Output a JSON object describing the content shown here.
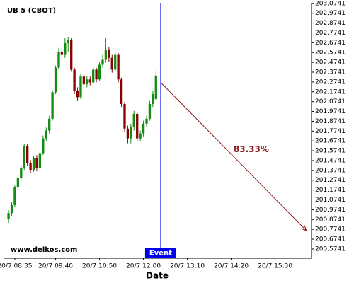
{
  "chart_data": {
    "type": "candlestick",
    "title": "UB 5 (CBOT)",
    "watermark": "www.delkos.com",
    "x_label": "Date",
    "up_color": "#148c14",
    "down_color": "#8b0000",
    "x": [
      0,
      1,
      2,
      3,
      4,
      5,
      6,
      7,
      8,
      9,
      10,
      11,
      12,
      13,
      14,
      15,
      16,
      17,
      18,
      19,
      20,
      21,
      22,
      23,
      24,
      25,
      26,
      27,
      28,
      29,
      30,
      31,
      32,
      33,
      34,
      35,
      36,
      37,
      38,
      39,
      40,
      41,
      42,
      43,
      44,
      45,
      46,
      47
    ],
    "open": [
      200.88,
      200.94,
      201.02,
      201.2,
      201.3,
      201.4,
      201.62,
      201.45,
      201.38,
      201.5,
      201.4,
      201.55,
      201.7,
      201.78,
      201.9,
      202.17,
      202.42,
      202.58,
      202.55,
      202.67,
      202.7,
      202.4,
      202.18,
      202.12,
      202.33,
      202.25,
      202.3,
      202.27,
      202.4,
      202.3,
      202.45,
      202.5,
      202.6,
      202.52,
      202.4,
      202.55,
      202.3,
      202.05,
      201.8,
      201.7,
      201.82,
      201.95,
      201.7,
      201.75,
      201.85,
      201.9,
      202.05,
      202.1
    ],
    "high": [
      200.97,
      201.05,
      201.22,
      201.33,
      201.43,
      201.64,
      201.64,
      201.48,
      201.52,
      201.53,
      201.57,
      201.73,
      201.81,
      201.93,
      202.19,
      202.44,
      202.62,
      202.63,
      202.72,
      202.73,
      202.72,
      202.42,
      202.22,
      202.36,
      202.36,
      202.33,
      202.33,
      202.43,
      202.42,
      202.48,
      202.55,
      202.72,
      202.63,
      202.55,
      202.58,
      202.57,
      202.32,
      202.07,
      201.83,
      201.85,
      201.98,
      201.97,
      201.78,
      201.88,
      201.93,
      202.08,
      202.18,
      202.38
    ],
    "low": [
      200.84,
      200.91,
      201.0,
      201.17,
      201.27,
      201.38,
      201.42,
      201.35,
      201.36,
      201.37,
      201.38,
      201.53,
      201.67,
      201.75,
      201.88,
      202.15,
      202.4,
      202.5,
      202.52,
      202.58,
      202.38,
      202.15,
      202.08,
      202.1,
      202.22,
      202.22,
      202.24,
      202.25,
      202.27,
      202.28,
      202.42,
      202.47,
      202.48,
      202.37,
      202.38,
      202.27,
      202.02,
      201.77,
      201.65,
      201.65,
      201.78,
      201.67,
      201.67,
      201.72,
      201.82,
      201.88,
      202.02,
      202.08
    ],
    "close": [
      200.94,
      201.02,
      201.2,
      201.3,
      201.4,
      201.62,
      201.45,
      201.38,
      201.5,
      201.4,
      201.55,
      201.7,
      201.78,
      201.9,
      202.17,
      202.42,
      202.58,
      202.55,
      202.67,
      202.7,
      202.4,
      202.18,
      202.12,
      202.33,
      202.25,
      202.3,
      202.27,
      202.4,
      202.3,
      202.45,
      202.5,
      202.6,
      202.52,
      202.4,
      202.55,
      202.3,
      202.05,
      201.8,
      201.7,
      201.82,
      201.95,
      201.7,
      201.75,
      201.85,
      201.9,
      202.05,
      202.15,
      202.34
    ],
    "xlim": [
      -1.6,
      96.6
    ],
    "xticks": [
      {
        "value": 2,
        "label": "20/7 08:35"
      },
      {
        "value": 15,
        "label": "20/7 09:40"
      },
      {
        "value": 29,
        "label": "20/7 10:50"
      },
      {
        "value": 43,
        "label": "20/7 12:00"
      },
      {
        "value": 57,
        "label": "20/7 13:10"
      },
      {
        "value": 71,
        "label": "20/7 14:20"
      },
      {
        "value": 85,
        "label": "20/7 15:30"
      }
    ],
    "ylim": [
      200.48,
      203.08
    ],
    "yticks": [
      200.5741,
      200.6741,
      200.7741,
      200.8741,
      200.9741,
      201.0741,
      201.1741,
      201.2741,
      201.3741,
      201.4741,
      201.5741,
      201.6741,
      201.7741,
      201.8741,
      201.9741,
      202.0741,
      202.1741,
      202.2741,
      202.3741,
      202.4741,
      202.5741,
      202.6741,
      202.7741,
      202.8741,
      202.9741,
      203.0741
    ],
    "event": {
      "x": 48.5,
      "label": "Event",
      "color": "#0000ee"
    },
    "projection": {
      "x": [
        48.5,
        95
      ],
      "y": [
        202.27,
        200.76
      ],
      "label": "83.33%",
      "color": "#8b1a1a"
    }
  }
}
